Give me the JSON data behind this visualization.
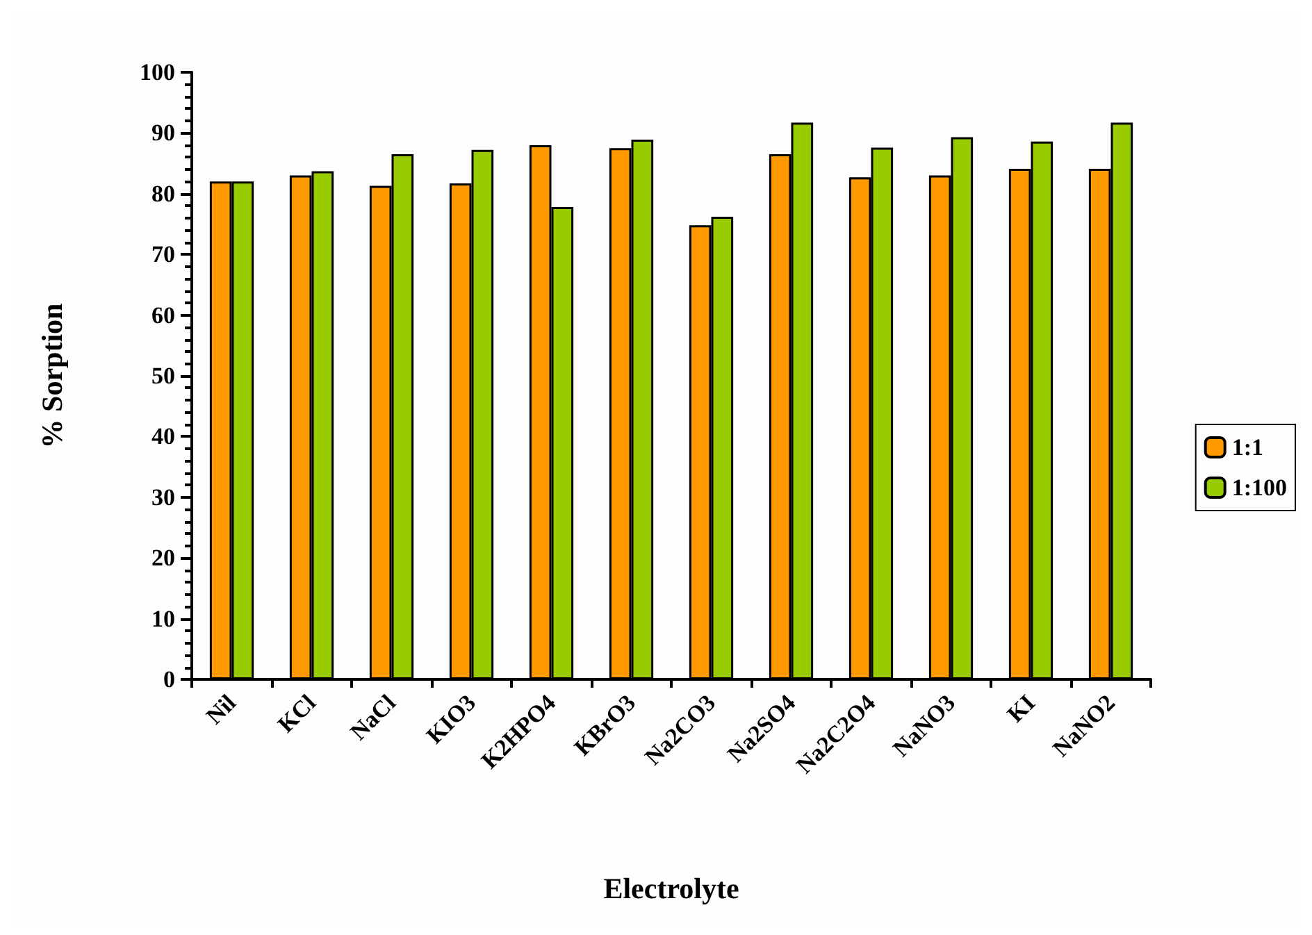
{
  "chart_data": {
    "type": "bar",
    "xlabel": "Electrolyte",
    "ylabel": "% Sorption",
    "categories": [
      "Nil",
      "KCl",
      "NaCl",
      "KIO3",
      "K2HPO4",
      "KBrO3",
      "Na2CO3",
      "Na2SO4",
      "Na2C2O4",
      "NaNO3",
      "KI",
      "NaNO2"
    ],
    "series": [
      {
        "name": "1:1",
        "color": "#ff9900",
        "values": [
          82,
          83,
          81.3,
          81.7,
          88,
          87.5,
          74.8,
          86.5,
          82.7,
          83,
          84.1,
          84.1
        ]
      },
      {
        "name": "1:100",
        "color": "#99cc00",
        "values": [
          82,
          83.7,
          86.5,
          87.2,
          77.8,
          88.9,
          76.2,
          91.7,
          87.6,
          89.3,
          88.6,
          91.7
        ]
      }
    ],
    "ylim": [
      0,
      100
    ],
    "yticks": [
      0,
      10,
      20,
      30,
      40,
      50,
      60,
      70,
      80,
      90,
      100
    ],
    "grid": false,
    "legend": "right"
  }
}
